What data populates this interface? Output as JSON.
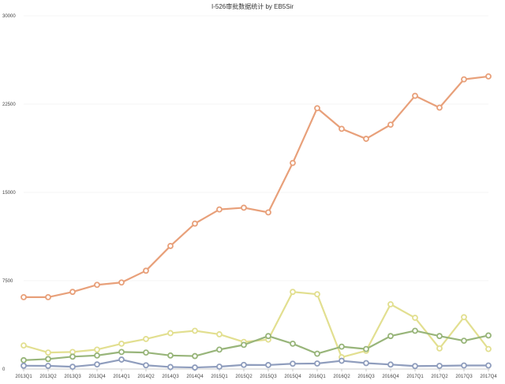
{
  "chart_data": {
    "type": "line",
    "title": "I-526审批数据统计 by EB5Sir",
    "xlabel": "",
    "ylabel": "",
    "categories": [
      "2013Q1",
      "2013Q2",
      "2013Q3",
      "2013Q4",
      "2014Q1",
      "2014Q2",
      "2014Q3",
      "2014Q4",
      "2015Q1",
      "2015Q2",
      "2015Q3",
      "2015Q4",
      "2016Q1",
      "2016Q2",
      "2016Q3",
      "2016Q4",
      "2017Q1",
      "2017Q2",
      "2017Q3",
      "2017Q4"
    ],
    "ylim": [
      0,
      30000
    ],
    "yticks": [
      0,
      7500,
      15000,
      22500,
      30000
    ],
    "grid": true,
    "legend": "none",
    "series": [
      {
        "color": "#e8a07a",
        "values": [
          6100,
          6100,
          6550,
          7150,
          7350,
          8350,
          10450,
          12350,
          13550,
          13700,
          13300,
          17500,
          22150,
          20400,
          19550,
          20750,
          23200,
          22200,
          24600,
          24850
        ]
      },
      {
        "color": "#e2df90",
        "values": [
          2000,
          1400,
          1450,
          1650,
          2150,
          2550,
          3050,
          3250,
          2950,
          2300,
          2500,
          6550,
          6350,
          1000,
          1550,
          5500,
          4350,
          1750,
          4400,
          1700
        ]
      },
      {
        "color": "#98b57a",
        "values": [
          750,
          850,
          1050,
          1150,
          1450,
          1400,
          1150,
          1100,
          1650,
          2050,
          2800,
          2150,
          1300,
          1900,
          1700,
          2800,
          3250,
          2800,
          2400,
          2850
        ]
      },
      {
        "color": "#8f9dbd",
        "values": [
          280,
          270,
          190,
          390,
          800,
          320,
          170,
          130,
          200,
          350,
          340,
          450,
          470,
          700,
          500,
          380,
          250,
          270,
          300,
          300
        ]
      }
    ]
  }
}
